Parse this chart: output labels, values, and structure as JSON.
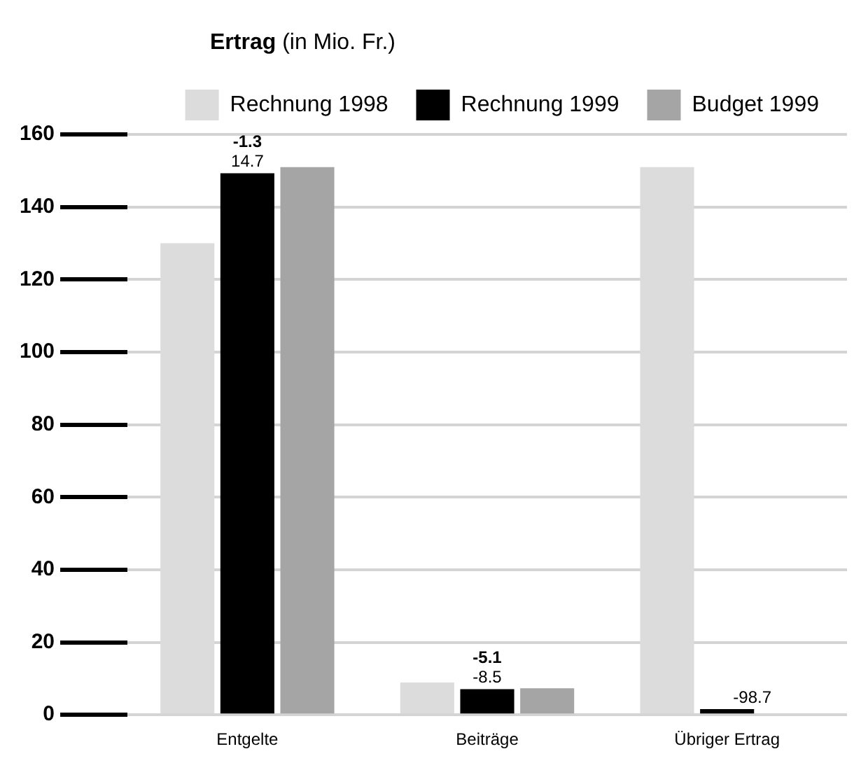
{
  "chart_data": {
    "type": "bar",
    "title": "Ertrag (in Mio. Fr.)",
    "categories": [
      "Entgelte",
      "Beiträge",
      "Übriger Ertrag"
    ],
    "series": [
      {
        "name": "Rechnung 1998",
        "color": "#dcdcdc",
        "values": [
          130,
          8.9,
          151
        ]
      },
      {
        "name": "Rechnung 1999",
        "color": "#000000",
        "values": [
          149.3,
          7.1,
          1.6
        ]
      },
      {
        "name": "Budget 1999",
        "color": "#a5a5a5",
        "values": [
          151,
          7.3,
          null
        ]
      }
    ],
    "ylim": [
      0,
      160
    ],
    "yticks": [
      0,
      20,
      40,
      60,
      80,
      100,
      120,
      140,
      160
    ],
    "grid": "y",
    "legend": "top",
    "annotations": [
      {
        "text": "-1.3",
        "x": "Entgelte",
        "y": 149.3
      },
      {
        "text": "14.7",
        "x": "Entgelte",
        "y": 149.3
      },
      {
        "text": "-5.1",
        "x": "Beiträge",
        "y": 7.1
      },
      {
        "text": "-8.5",
        "x": "Beiträge",
        "y": 7.1
      },
      {
        "text": "-98.7",
        "x": "Übriger Ertrag",
        "y": 1.6
      }
    ]
  }
}
